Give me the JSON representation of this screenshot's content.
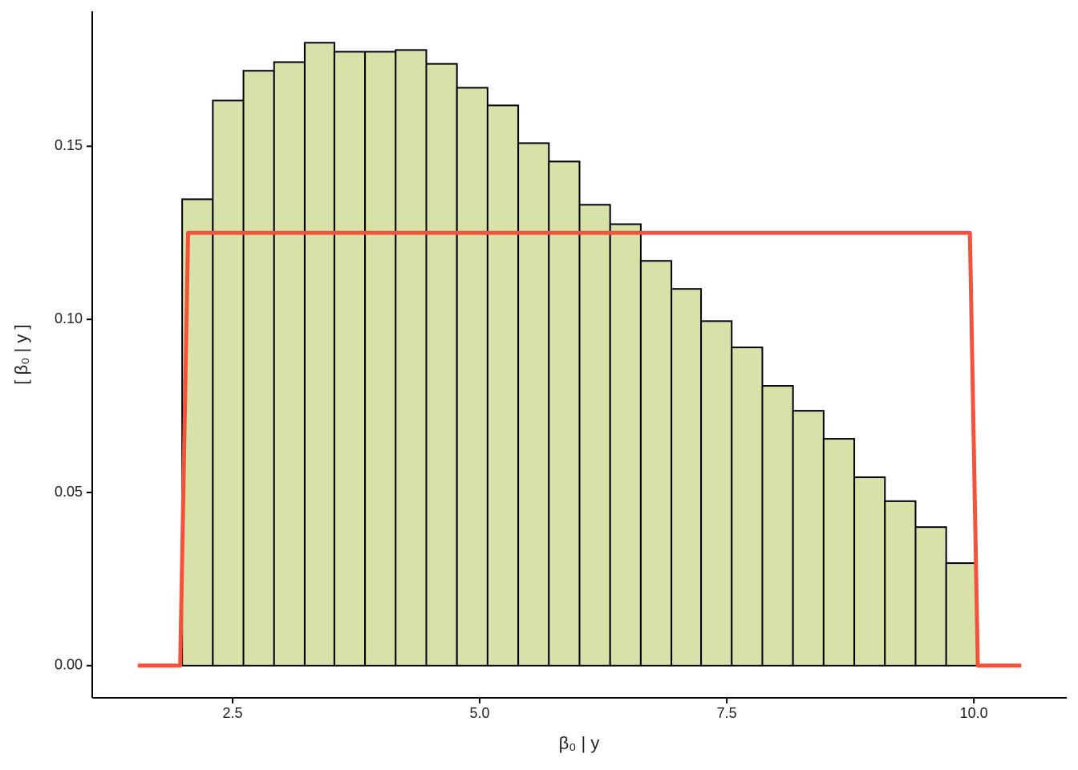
{
  "chart_data": {
    "type": "histogram",
    "xlabel": "β₀ | y",
    "ylabel": "[ β₀ | y ]",
    "bins": [
      1.99,
      2.3,
      2.61,
      2.92,
      3.23,
      3.53,
      3.84,
      4.15,
      4.46,
      4.77,
      5.08,
      5.39,
      5.7,
      6.01,
      6.32,
      6.63,
      6.94,
      7.24,
      7.55,
      7.86,
      8.17,
      8.48,
      8.79,
      9.1,
      9.41,
      9.72,
      10.03
    ],
    "values": [
      0.1347,
      0.1632,
      0.1718,
      0.1743,
      0.1799,
      0.1773,
      0.1773,
      0.1778,
      0.1738,
      0.1669,
      0.1618,
      0.1509,
      0.1456,
      0.1331,
      0.1275,
      0.1169,
      0.1088,
      0.0995,
      0.0919,
      0.0808,
      0.0736,
      0.0655,
      0.0544,
      0.0475,
      0.04,
      0.0296
    ],
    "color": "#d7e1a8",
    "line": {
      "x": [
        1.54,
        1.97,
        2.05,
        9.96,
        10.04,
        10.48
      ],
      "values": [
        0,
        0,
        0.125,
        0.125,
        0,
        0
      ],
      "color": "#f4523b"
    },
    "xlim": [
      1.08,
      10.94
    ],
    "ylim": [
      -0.0093,
      0.189
    ],
    "xticks": [
      2.5,
      {
        "value": 5,
        "label": "5.0"
      },
      7.5,
      {
        "value": 10,
        "label": "10.0"
      }
    ],
    "yticks": [
      {
        "value": 0,
        "label": "0.00"
      },
      {
        "value": 0.05,
        "label": "0.05"
      },
      {
        "value": 0.1,
        "label": "0.10"
      },
      {
        "value": 0.15,
        "label": "0.15"
      }
    ]
  }
}
